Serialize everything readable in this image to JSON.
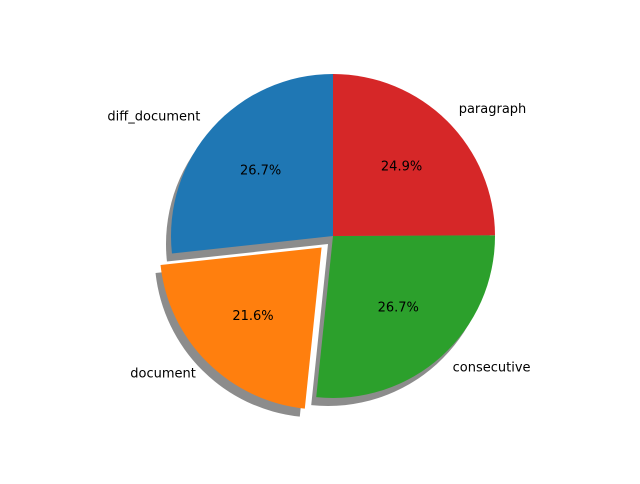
{
  "chart_data": {
    "type": "pie",
    "title": "",
    "start_angle_deg": 90,
    "direction": "counterclockwise",
    "shadow": true,
    "slices": [
      {
        "label": "diff_document",
        "value": 26.7,
        "pct_label": "26.7%",
        "color": "#1f77b4",
        "exploded": false
      },
      {
        "label": "document",
        "value": 21.6,
        "pct_label": "21.6%",
        "color": "#ff7f0e",
        "exploded": true
      },
      {
        "label": "consecutive",
        "value": 26.7,
        "pct_label": "26.7%",
        "color": "#2ca02c",
        "exploded": false
      },
      {
        "label": "paragraph",
        "value": 24.9,
        "pct_label": "24.9%",
        "color": "#d62728",
        "exploded": false
      }
    ]
  }
}
